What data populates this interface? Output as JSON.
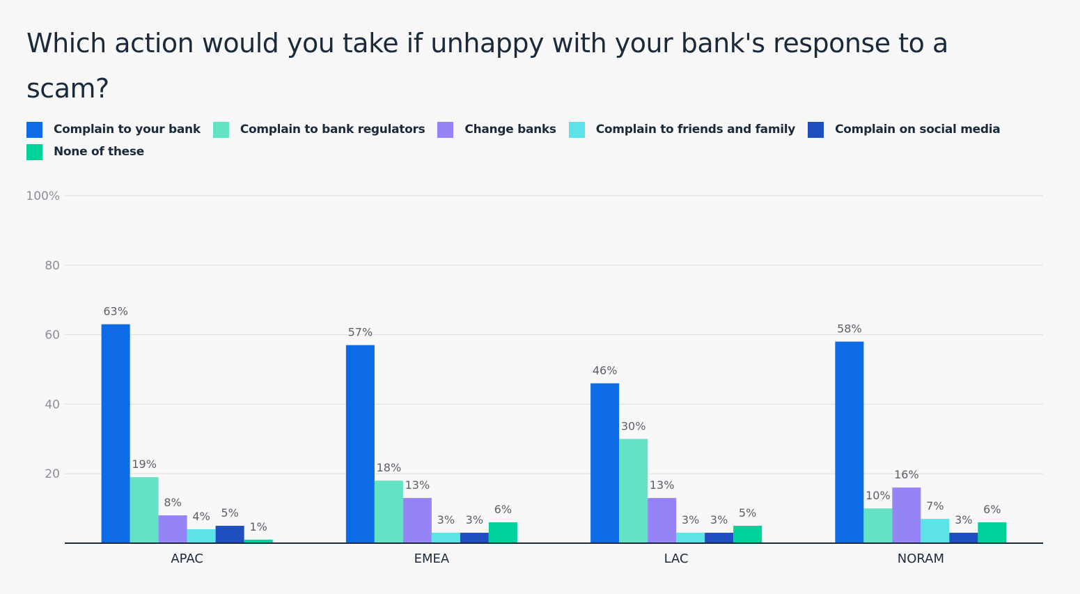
{
  "chart_data": {
    "type": "bar",
    "title": "Which action would you take if unhappy with your bank's response to a scam?",
    "xlabel": "",
    "ylabel": "",
    "ylim": [
      0,
      100
    ],
    "yticks": [
      "20",
      "40",
      "60",
      "80",
      "100%"
    ],
    "grid": true,
    "legend_position": "top-left",
    "categories": [
      "APAC",
      "EMEA",
      "LAC",
      "NORAM"
    ],
    "series": [
      {
        "name": "Complain to your bank",
        "color": "#0d6be6",
        "values": [
          63,
          57,
          46,
          58
        ]
      },
      {
        "name": "Complain to bank regulators",
        "color": "#63e3c4",
        "values": [
          19,
          18,
          30,
          10
        ]
      },
      {
        "name": "Change banks",
        "color": "#9484f5",
        "values": [
          8,
          13,
          13,
          16
        ]
      },
      {
        "name": "Complain to friends and family",
        "color": "#5ce3e8",
        "values": [
          4,
          3,
          3,
          7
        ]
      },
      {
        "name": "Complain on social media",
        "color": "#1f4fbf",
        "values": [
          5,
          3,
          3,
          3
        ]
      },
      {
        "name": "None of these",
        "color": "#00d09a",
        "values": [
          1,
          6,
          5,
          6
        ]
      }
    ],
    "data_label_suffix": "%"
  }
}
